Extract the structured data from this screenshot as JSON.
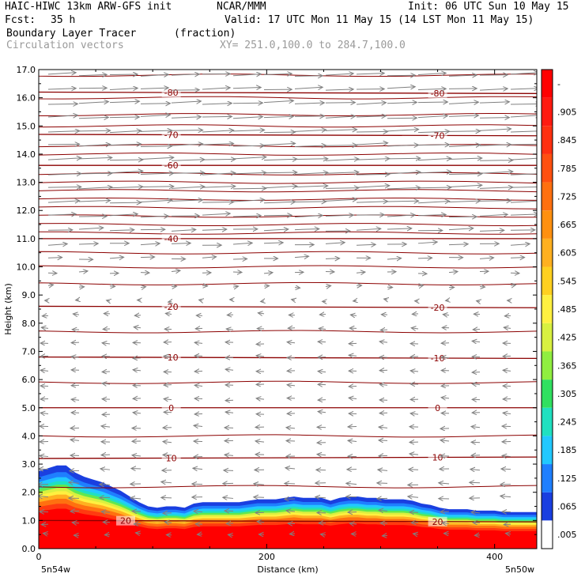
{
  "header": {
    "title": "HAIC-HIWC 13km ARW-GFS init",
    "org": "NCAR/MMM",
    "init": "Init: 06 UTC Sun 10 May 15",
    "fcst_label": "Fcst:",
    "fcst_value": "35 h",
    "valid": "Valid: 17 UTC Mon 11 May 15 (14 LST Mon 11 May 15)",
    "field": "Boundary Layer Tracer",
    "field_units": "(fraction)",
    "vectors": "Circulation vectors",
    "xy": "XY= 251.0,100.0 to 284.7,100.0"
  },
  "chart_data": {
    "type": "heatmap",
    "xlabel": "Distance (km)",
    "ylabel": "Height (km)",
    "xlim": [
      0,
      437
    ],
    "ylim": [
      0,
      17
    ],
    "x_ticks": [
      "0",
      "200",
      "400"
    ],
    "y_ticks": [
      "0.0",
      "1.0",
      "2.0",
      "3.0",
      "4.0",
      "5.0",
      "6.0",
      "7.0",
      "8.0",
      "9.0",
      "10.0",
      "11.0",
      "12.0",
      "13.0",
      "14.0",
      "15.0",
      "16.0",
      "17.0"
    ],
    "left_endpoint": "5n54w",
    "right_endpoint": "5n50w",
    "colorbar": {
      "labels": [
        ".005",
        ".065",
        ".125",
        ".185",
        ".245",
        ".305",
        ".365",
        ".425",
        ".485",
        ".545",
        ".605",
        ".665",
        ".725",
        ".785",
        ".845",
        ".905",
        "-"
      ],
      "colors": [
        "#ffffff",
        "#1a3fe0",
        "#1f7fff",
        "#22c8ff",
        "#20e0c0",
        "#30e060",
        "#90ee40",
        "#d8f040",
        "#fff040",
        "#ffd020",
        "#ffb020",
        "#ff9010",
        "#ff7010",
        "#ff5010",
        "#ff3010",
        "#ff1a10",
        "#ff0000"
      ]
    },
    "boundary_layer_top": {
      "x": [
        0,
        8,
        16,
        24,
        32,
        40,
        48,
        56,
        64,
        72,
        80,
        88,
        96,
        104,
        112,
        120,
        128,
        136,
        144,
        152,
        160,
        168,
        176,
        184,
        192,
        200,
        208,
        216,
        224,
        232,
        240,
        248,
        256,
        264,
        272,
        280,
        288,
        296,
        304,
        312,
        320,
        328,
        336,
        344,
        352,
        360,
        368,
        376,
        384,
        392,
        400,
        408,
        416,
        424,
        437
      ],
      "top": [
        2.75,
        2.85,
        2.95,
        2.95,
        2.7,
        2.55,
        2.45,
        2.35,
        2.2,
        2.05,
        1.85,
        1.65,
        1.5,
        1.45,
        1.5,
        1.5,
        1.45,
        1.6,
        1.65,
        1.65,
        1.65,
        1.65,
        1.65,
        1.7,
        1.75,
        1.75,
        1.75,
        1.8,
        1.85,
        1.8,
        1.8,
        1.8,
        1.7,
        1.8,
        1.85,
        1.85,
        1.8,
        1.8,
        1.75,
        1.75,
        1.75,
        1.7,
        1.6,
        1.55,
        1.45,
        1.4,
        1.4,
        1.4,
        1.35,
        1.35,
        1.35,
        1.3,
        1.3,
        1.3,
        1.3
      ]
    },
    "temperature_contours": [
      {
        "label": "-80",
        "y_left": 16.2,
        "y_right": 16.15,
        "label_x": [
          40,
          350
        ]
      },
      {
        "label": "-70",
        "y_left": 14.7,
        "y_right": 14.65,
        "label_x": [
          40,
          350
        ]
      },
      {
        "label": "-60",
        "y_left": 13.6,
        "y_right": 13.6,
        "label_x": [
          40
        ]
      },
      {
        "label": "-40",
        "y_left": 11.0,
        "y_right": 11.0,
        "label_x": [
          40
        ]
      },
      {
        "label": "-20",
        "y_left": 8.6,
        "y_right": 8.55,
        "label_x": [
          40,
          350
        ]
      },
      {
        "label": "-10",
        "y_left": 6.8,
        "y_right": 6.75,
        "label_x": [
          40,
          350
        ]
      },
      {
        "label": "0",
        "y_left": 5.0,
        "y_right": 5.0,
        "label_x": [
          40,
          350
        ]
      },
      {
        "label": "10",
        "y_left": 3.2,
        "y_right": 3.25,
        "label_x": [
          40,
          350
        ]
      },
      {
        "label": "20",
        "y_left": 1.0,
        "y_right": 0.95,
        "label_x": [
          0,
          350
        ]
      }
    ],
    "extra_theta_lines": [
      16.8,
      16.0,
      15.4,
      15.0,
      14.3,
      14.0,
      13.3,
      13.0,
      12.7,
      12.4,
      12.1,
      11.8,
      11.5,
      11.2,
      10.5,
      10.0,
      9.4,
      7.7,
      5.9,
      4.0,
      2.2
    ],
    "wind_rows": [
      {
        "z": 16.8,
        "u": 1.6
      },
      {
        "z": 16.3,
        "u": 1.6
      },
      {
        "z": 15.8,
        "u": 1.7
      },
      {
        "z": 15.3,
        "u": 1.7
      },
      {
        "z": 14.8,
        "u": 1.8
      },
      {
        "z": 14.3,
        "u": 1.8
      },
      {
        "z": 13.8,
        "u": 1.9
      },
      {
        "z": 13.3,
        "u": 1.9
      },
      {
        "z": 12.8,
        "u": 1.9
      },
      {
        "z": 12.3,
        "u": 1.8
      },
      {
        "z": 11.8,
        "u": 1.6
      },
      {
        "z": 11.3,
        "u": 1.4
      },
      {
        "z": 10.8,
        "u": 1.1
      },
      {
        "z": 10.3,
        "u": 0.8
      },
      {
        "z": 9.8,
        "u": 0.5
      },
      {
        "z": 9.3,
        "u": 0.3
      },
      {
        "z": 8.8,
        "u": -0.2
      },
      {
        "z": 8.3,
        "u": -0.35
      },
      {
        "z": 7.8,
        "u": -0.4
      },
      {
        "z": 7.3,
        "u": -0.45
      },
      {
        "z": 6.8,
        "u": -0.45
      },
      {
        "z": 6.3,
        "u": -0.45
      },
      {
        "z": 5.8,
        "u": -0.45
      },
      {
        "z": 5.3,
        "u": -0.45
      },
      {
        "z": 4.8,
        "u": -0.45
      },
      {
        "z": 4.3,
        "u": -0.5
      },
      {
        "z": 3.8,
        "u": -0.5
      },
      {
        "z": 3.3,
        "u": -0.5
      },
      {
        "z": 2.8,
        "u": -0.55
      },
      {
        "z": 2.3,
        "u": -0.6
      },
      {
        "z": 1.8,
        "u": -0.6
      },
      {
        "z": 1.3,
        "u": -0.5
      },
      {
        "z": 0.9,
        "u": -0.4
      },
      {
        "z": 0.5,
        "u": -0.3
      }
    ],
    "grid": false,
    "legend": "right"
  },
  "colors": {
    "contour": "#8b0000",
    "vector": "#808080",
    "header_gray": "#9a9a9a"
  }
}
